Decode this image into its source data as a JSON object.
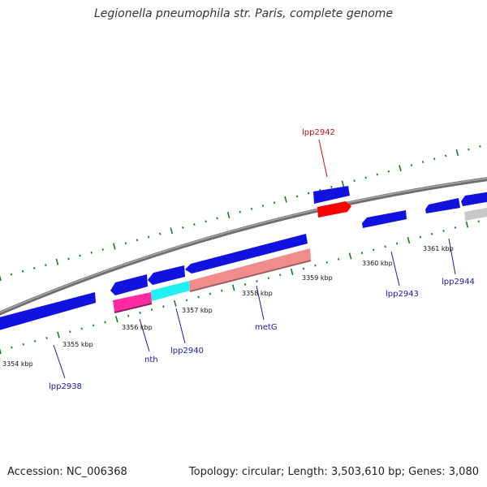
{
  "title": "Legionella pneumophila str. Paris, complete genome",
  "accession": "Accession: NC_006368",
  "genome_stats": "Topology: circular; Length: 3,503,610 bp; Genes: 3,080",
  "colors": {
    "backbone": "#8c8c8c",
    "tick": "#1e7a1e",
    "blue_gene": "#1212e0",
    "highlight_gene": "#ff0000",
    "grey_gene": "#c8c8c8",
    "magenta_gene": "#ff2aa0",
    "cyan_gene": "#20f0f0",
    "salmon_gene": "#f08c8c",
    "label_blue": "#1a1aa8",
    "label_red": "#cc1010"
  },
  "scale_labels": [
    {
      "name": "kbp-3354",
      "text": "3354 kbp"
    },
    {
      "name": "kbp-3355",
      "text": "3355 kbp"
    },
    {
      "name": "kbp-3356",
      "text": "3356 kbp"
    },
    {
      "name": "kbp-3357",
      "text": "3357 kbp"
    },
    {
      "name": "kbp-3358",
      "text": "3358 kbp"
    },
    {
      "name": "kbp-3359",
      "text": "3359 kbp"
    },
    {
      "name": "kbp-3360",
      "text": "3360 kbp"
    },
    {
      "name": "kbp-3361",
      "text": "3361 kbp"
    }
  ],
  "gene_labels": [
    {
      "name": "lpp2938",
      "text": "lpp2938"
    },
    {
      "name": "nth",
      "text": "nth"
    },
    {
      "name": "lpp2940",
      "text": "lpp2940"
    },
    {
      "name": "metG",
      "text": "metG"
    },
    {
      "name": "lpp2942",
      "text": "lpp2942"
    },
    {
      "name": "lpp2943",
      "text": "lpp2943"
    },
    {
      "name": "lpp2944",
      "text": "lpp2944"
    }
  ]
}
